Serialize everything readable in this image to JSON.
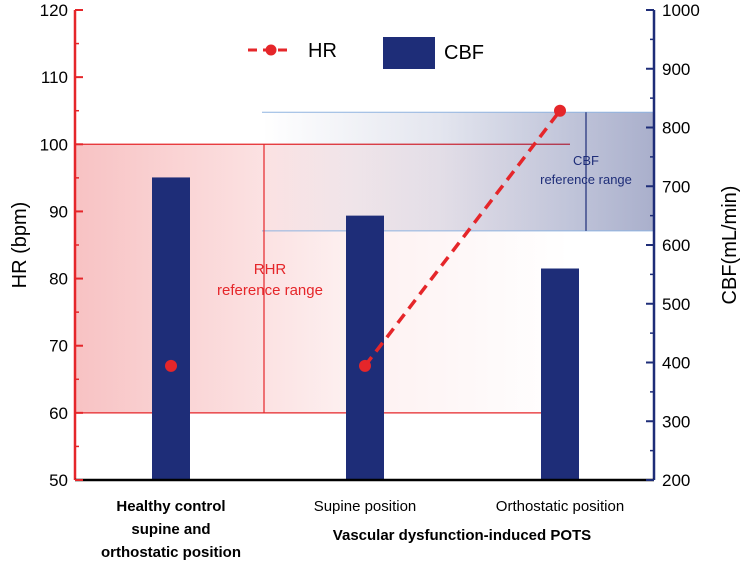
{
  "chart_data": {
    "type": "bar+line",
    "left_axis": {
      "label": "HR (bpm)",
      "range": [
        50,
        120
      ],
      "ticks": [
        50,
        60,
        70,
        80,
        90,
        100,
        110,
        120
      ],
      "color": "#e5262a"
    },
    "right_axis": {
      "label": "CBF(mL/min)",
      "range": [
        200,
        1000
      ],
      "ticks": [
        200,
        300,
        400,
        500,
        600,
        700,
        800,
        900,
        1000
      ],
      "color": "#1e2d78"
    },
    "categories": [
      {
        "lines": [
          "Healthy control",
          "supine and",
          "orthostatic position"
        ],
        "bold": true
      },
      {
        "lines": [
          "Supine position"
        ],
        "bold": false
      },
      {
        "lines": [
          "Orthostatic position"
        ],
        "bold": false
      }
    ],
    "group_label": "Vascular dysfunction-induced POTS",
    "series": [
      {
        "name": "CBF",
        "type": "bar",
        "axis": "right",
        "values": [
          715,
          650,
          560
        ],
        "color": "#1e2d78"
      },
      {
        "name": "HR",
        "type": "line",
        "axis": "left",
        "values": [
          67,
          67,
          105
        ],
        "color": "#e5262a",
        "connect_from_index": 1
      }
    ],
    "reference_ranges": [
      {
        "label_lines": [
          "RHR",
          "reference range"
        ],
        "axis": "left",
        "range": [
          60,
          100
        ],
        "color": "#e5262a"
      },
      {
        "label_lines": [
          "CBF",
          "reference range"
        ],
        "axis": "right",
        "range": [
          624,
          826
        ],
        "color": "#1e2d78"
      }
    ],
    "legend": {
      "position": "top-center",
      "items": [
        "HR",
        "CBF"
      ]
    }
  }
}
